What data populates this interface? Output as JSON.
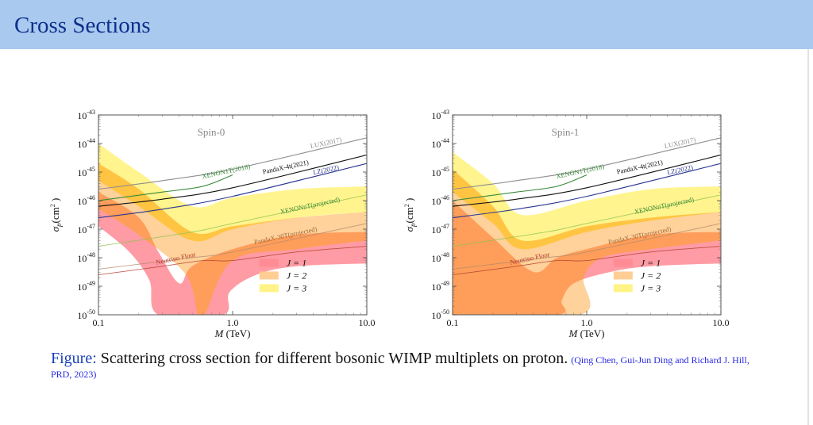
{
  "slide": {
    "title": "Cross Sections",
    "caption": {
      "label": "Figure:",
      "text": " Scattering cross section for different bosonic WIMP multiplets on proton.",
      "reference": "(Qing Chen, Gui-Jun Ding and Richard J. Hill, PRD, 2023)"
    }
  },
  "chart_data": [
    {
      "type": "area",
      "title": "Spin-0",
      "xlabel": "M (TeV)",
      "ylabel": "σp (cm²)",
      "xscale": "log",
      "yscale": "log",
      "xlim": [
        0.1,
        10.0
      ],
      "ylim_exponent": [
        -50,
        -43
      ],
      "xticks": [
        "0.1",
        "1.0",
        "10.0"
      ],
      "yticks": [
        "10⁻⁴³",
        "10⁻⁴⁴",
        "10⁻⁴⁵",
        "10⁻⁴⁶",
        "10⁻⁴⁷",
        "10⁻⁴⁸",
        "10⁻⁴⁹",
        "10⁻⁵⁰"
      ],
      "legend": {
        "position": "bottom-right",
        "entries": [
          "J = 1",
          "J = 2",
          "J = 3"
        ]
      },
      "bands": [
        {
          "name": "J = 3",
          "color": "#fff27a",
          "upper": [
            [
              0.1,
              -44.0
            ],
            [
              0.2,
              -45.0
            ],
            [
              0.5,
              -46.2
            ],
            [
              1.0,
              -45.9
            ],
            [
              3.0,
              -45.6
            ],
            [
              10.0,
              -45.5
            ]
          ],
          "lower": [
            [
              0.1,
              -45.3
            ],
            [
              0.2,
              -46.2
            ],
            [
              0.5,
              -47.4
            ],
            [
              1.0,
              -47.0
            ],
            [
              3.0,
              -46.6
            ],
            [
              10.0,
              -46.4
            ]
          ]
        },
        {
          "name": "J = 2",
          "color": "#ffc98a",
          "upper": [
            [
              0.1,
              -44.7
            ],
            [
              0.2,
              -45.6
            ],
            [
              0.5,
              -47.1
            ],
            [
              1.0,
              -46.9
            ],
            [
              3.0,
              -46.6
            ],
            [
              10.0,
              -46.4
            ]
          ],
          "lower": [
            [
              0.1,
              -46.3
            ],
            [
              0.2,
              -47.2
            ],
            [
              0.45,
              -48.6
            ],
            [
              0.55,
              -50.0
            ],
            [
              0.62,
              -50
            ],
            [
              1.0,
              -48.1
            ],
            [
              3.0,
              -47.7
            ],
            [
              10.0,
              -47.4
            ]
          ]
        },
        {
          "name": "J = 1",
          "color": "#ff8a94",
          "upper": [
            [
              0.1,
              -45.7
            ],
            [
              0.2,
              -46.6
            ],
            [
              0.28,
              -47.8
            ],
            [
              0.4,
              -48.9
            ],
            [
              0.5,
              -48.3
            ],
            [
              1.0,
              -47.7
            ],
            [
              3.0,
              -47.2
            ],
            [
              10.0,
              -47.1
            ]
          ],
          "lower": [
            [
              0.1,
              -46.9
            ],
            [
              0.17,
              -47.8
            ],
            [
              0.24,
              -48.8
            ],
            [
              0.28,
              -50.0
            ],
            [
              0.85,
              -50.0
            ],
            [
              0.95,
              -49.2
            ],
            [
              1.5,
              -48.6
            ],
            [
              3.0,
              -48.3
            ],
            [
              10.0,
              -48.2
            ]
          ]
        }
      ],
      "overlap_region": {
        "name": "J=1 ∩ J=2 ∩ J=3 overlap",
        "color": "#ffc33a"
      },
      "lines": [
        {
          "name": "LUX(2017)",
          "color": "#8e8e8e",
          "points": [
            [
              0.1,
              -45.6
            ],
            [
              0.3,
              -45.3
            ],
            [
              1.0,
              -44.9
            ],
            [
              10.0,
              -43.8
            ]
          ]
        },
        {
          "name": "XENON1T(2018)",
          "color": "#3a8a3a",
          "points": [
            [
              0.1,
              -46.0
            ],
            [
              0.3,
              -45.7
            ],
            [
              0.6,
              -45.5
            ],
            [
              1.0,
              -45.1
            ]
          ]
        },
        {
          "name": "PandaX-4t(2021)",
          "color": "#111111",
          "points": [
            [
              0.1,
              -46.2
            ],
            [
              0.3,
              -45.95
            ],
            [
              1.0,
              -45.55
            ],
            [
              10.0,
              -44.4
            ]
          ]
        },
        {
          "name": "LZ(2022)",
          "color": "#2a3590",
          "points": [
            [
              0.1,
              -46.6
            ],
            [
              0.3,
              -46.3
            ],
            [
              1.0,
              -45.85
            ],
            [
              10.0,
              -44.7
            ]
          ]
        },
        {
          "name": "XENONnT(projected)",
          "color": "#8fc050",
          "points": [
            [
              0.1,
              -47.6
            ],
            [
              0.5,
              -47.1
            ],
            [
              1.0,
              -46.8
            ],
            [
              10.0,
              -45.8
            ]
          ]
        },
        {
          "name": "PandaX-30T(projected)",
          "color": "#b08a6a",
          "points": [
            [
              0.1,
              -48.4
            ],
            [
              0.5,
              -48.0
            ],
            [
              1.0,
              -47.8
            ],
            [
              10.0,
              -46.8
            ]
          ]
        },
        {
          "name": "Neutrino Floor",
          "color": "#b03a2a",
          "points": [
            [
              0.1,
              -48.6
            ],
            [
              0.3,
              -48.3
            ],
            [
              0.6,
              -48.1
            ],
            [
              1.0,
              -48.1
            ],
            [
              3.0,
              -47.8
            ],
            [
              10.0,
              -47.6
            ]
          ]
        }
      ],
      "line_labels": [
        {
          "text": "LUX(2017)",
          "at": [
            5.0,
            -44.05
          ],
          "color": "#8e8e8e"
        },
        {
          "text": "XENON1T(2018)",
          "at": [
            0.9,
            -45.05
          ],
          "color": "#3a8a3a"
        },
        {
          "text": "PandaX-4t(2021)",
          "at": [
            2.5,
            -44.9
          ],
          "color": "#111111"
        },
        {
          "text": "LZ(2022)",
          "at": [
            5.0,
            -45.0
          ],
          "color": "#2a3590"
        },
        {
          "text": "XENONnT(projected)",
          "at": [
            3.8,
            -46.25
          ],
          "color": "#3a8a3a"
        },
        {
          "text": "PandaX-30T(projected)",
          "at": [
            2.5,
            -47.3
          ],
          "color": "#a06a3a"
        },
        {
          "text": "Neutrino Floor",
          "at": [
            0.38,
            -48.1
          ],
          "color": "#b03a2a"
        }
      ]
    },
    {
      "type": "area",
      "title": "Spin-1",
      "xlabel": "M (TeV)",
      "ylabel": "σp (cm²)",
      "xscale": "log",
      "yscale": "log",
      "xlim": [
        0.1,
        10.0
      ],
      "ylim_exponent": [
        -50,
        -43
      ],
      "xticks": [
        "0.1",
        "1.0",
        "10.0"
      ],
      "yticks": [
        "10⁻⁴³",
        "10⁻⁴⁴",
        "10⁻⁴⁵",
        "10⁻⁴⁶",
        "10⁻⁴⁷",
        "10⁻⁴⁸",
        "10⁻⁴⁹",
        "10⁻⁵⁰"
      ],
      "legend": {
        "position": "bottom-right",
        "entries": [
          "J = 1",
          "J = 2",
          "J = 3"
        ]
      },
      "bands": [
        {
          "name": "J = 3",
          "color": "#fff27a",
          "upper": [
            [
              0.1,
              -44.3
            ],
            [
              0.2,
              -45.4
            ],
            [
              0.33,
              -46.5
            ],
            [
              1.0,
              -46.0
            ],
            [
              3.0,
              -45.6
            ],
            [
              10.0,
              -45.5
            ]
          ],
          "lower": [
            [
              0.1,
              -45.7
            ],
            [
              0.2,
              -46.8
            ],
            [
              0.33,
              -47.7
            ],
            [
              1.0,
              -47.1
            ],
            [
              3.0,
              -46.7
            ],
            [
              10.0,
              -46.4
            ]
          ]
        },
        {
          "name": "J = 2",
          "color": "#ffc98a",
          "upper": [
            [
              0.1,
              -44.9
            ],
            [
              0.2,
              -46.2
            ],
            [
              0.33,
              -47.4
            ],
            [
              1.0,
              -46.9
            ],
            [
              3.0,
              -46.6
            ],
            [
              10.0,
              -46.4
            ]
          ],
          "lower": [
            [
              0.1,
              -50.0
            ],
            [
              0.9,
              -50.0
            ],
            [
              0.95,
              -48.7
            ],
            [
              1.3,
              -48.0
            ],
            [
              3.0,
              -47.7
            ],
            [
              10.0,
              -47.4
            ]
          ]
        },
        {
          "name": "J = 1",
          "color": "#ff8a94",
          "upper": [
            [
              0.1,
              -46.0
            ],
            [
              0.2,
              -47.3
            ],
            [
              0.4,
              -48.5
            ],
            [
              0.6,
              -48.0
            ],
            [
              1.0,
              -47.7
            ],
            [
              3.0,
              -47.2
            ],
            [
              10.0,
              -47.1
            ]
          ],
          "lower": [
            [
              0.1,
              -50.0
            ],
            [
              0.6,
              -50.0
            ],
            [
              0.65,
              -49.5
            ],
            [
              0.8,
              -48.9
            ],
            [
              1.5,
              -48.5
            ],
            [
              3.0,
              -48.3
            ],
            [
              10.0,
              -48.2
            ]
          ]
        }
      ],
      "overlap_region": {
        "name": "J=1 ∩ J=2 ∩ J=3 overlap",
        "color": "#ffc33a"
      },
      "lines": [
        {
          "name": "LUX(2017)",
          "color": "#8e8e8e",
          "points": [
            [
              0.1,
              -45.6
            ],
            [
              0.3,
              -45.3
            ],
            [
              1.0,
              -44.9
            ],
            [
              10.0,
              -43.8
            ]
          ]
        },
        {
          "name": "XENON1T(2018)",
          "color": "#3a8a3a",
          "points": [
            [
              0.1,
              -46.0
            ],
            [
              0.3,
              -45.7
            ],
            [
              0.6,
              -45.5
            ],
            [
              1.0,
              -45.1
            ]
          ]
        },
        {
          "name": "PandaX-4t(2021)",
          "color": "#111111",
          "points": [
            [
              0.1,
              -46.2
            ],
            [
              0.3,
              -45.95
            ],
            [
              1.0,
              -45.55
            ],
            [
              10.0,
              -44.4
            ]
          ]
        },
        {
          "name": "LZ(2022)",
          "color": "#2a3590",
          "points": [
            [
              0.1,
              -46.6
            ],
            [
              0.3,
              -46.3
            ],
            [
              1.0,
              -45.85
            ],
            [
              10.0,
              -44.7
            ]
          ]
        },
        {
          "name": "XENONnT(projected)",
          "color": "#8fc050",
          "points": [
            [
              0.1,
              -47.6
            ],
            [
              0.5,
              -47.1
            ],
            [
              1.0,
              -46.8
            ],
            [
              10.0,
              -45.8
            ]
          ]
        },
        {
          "name": "PandaX-30T(projected)",
          "color": "#b08a6a",
          "points": [
            [
              0.1,
              -48.4
            ],
            [
              0.5,
              -48.0
            ],
            [
              1.0,
              -47.8
            ],
            [
              10.0,
              -46.8
            ]
          ]
        },
        {
          "name": "Neutrino Floor",
          "color": "#b03a2a",
          "points": [
            [
              0.1,
              -48.6
            ],
            [
              0.3,
              -48.3
            ],
            [
              0.6,
              -48.1
            ],
            [
              1.0,
              -48.1
            ],
            [
              3.0,
              -47.8
            ],
            [
              10.0,
              -47.6
            ]
          ]
        }
      ],
      "line_labels": [
        {
          "text": "LUX(2017)",
          "at": [
            5.0,
            -44.05
          ],
          "color": "#8e8e8e"
        },
        {
          "text": "XENON1T(2018)",
          "at": [
            0.9,
            -45.05
          ],
          "color": "#3a8a3a"
        },
        {
          "text": "PandaX-4t(2021)",
          "at": [
            2.5,
            -44.9
          ],
          "color": "#111111"
        },
        {
          "text": "LZ(2022)",
          "at": [
            5.0,
            -45.0
          ],
          "color": "#2a3590"
        },
        {
          "text": "XENONnT(projected)",
          "at": [
            3.8,
            -46.25
          ],
          "color": "#3a8a3a"
        },
        {
          "text": "PandaX-30T(projected)",
          "at": [
            2.5,
            -47.3
          ],
          "color": "#a06a3a"
        },
        {
          "text": "Neutrino Floor",
          "at": [
            0.38,
            -48.1
          ],
          "color": "#b03a2a"
        }
      ]
    }
  ]
}
